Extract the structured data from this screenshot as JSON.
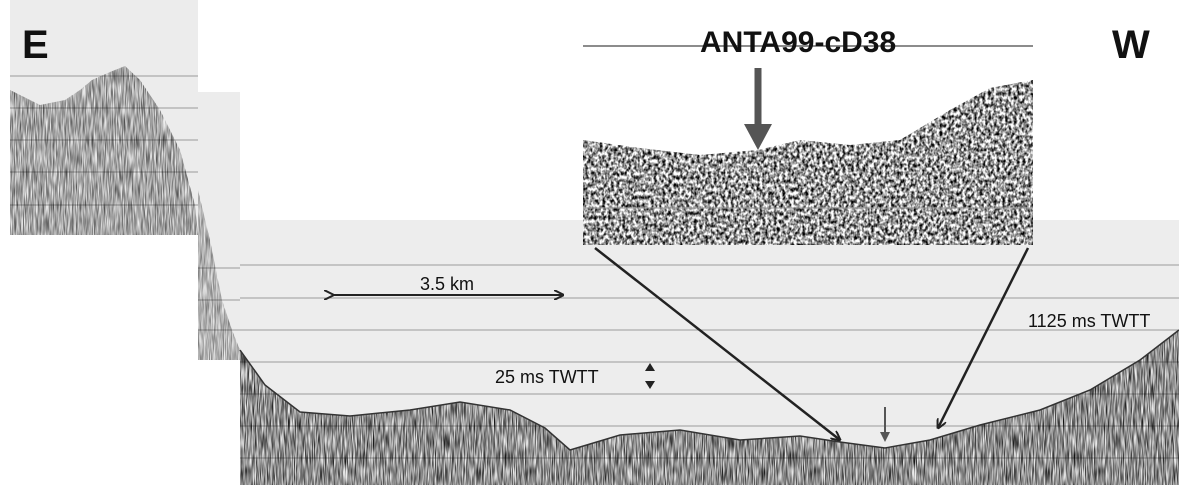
{
  "labels": {
    "east": "E",
    "west": "W",
    "profile_id": "ANTA99-cD38",
    "scale_bar": "3.5 km",
    "vertical_scale": "25 ms TWTT",
    "depth": "1125 ms TWTT"
  }
}
